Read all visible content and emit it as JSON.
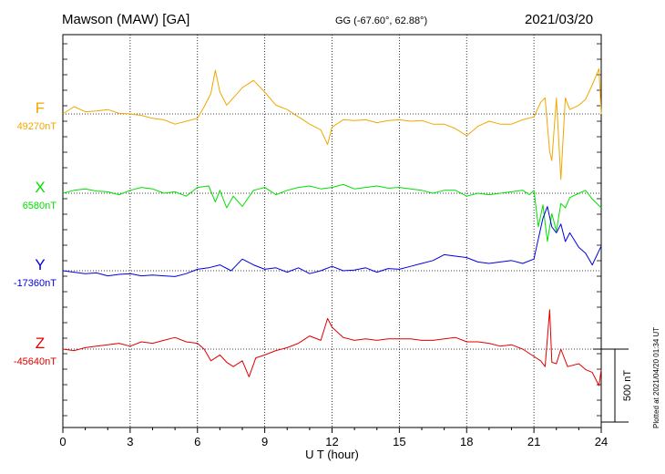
{
  "header": {
    "station": "Mawson (MAW)  [GA]",
    "coordinates": "GG (-67.60°,  62.88°)",
    "date": "2021/03/20"
  },
  "footer": {
    "plotted": "Plotted at 2021/04/20 01:34 UT"
  },
  "chart_data": {
    "type": "line",
    "title": "Mawson (MAW)  [GA]",
    "xlabel": "U T (hour)",
    "xlim": [
      0,
      24
    ],
    "xticks": [
      0,
      3,
      6,
      9,
      12,
      15,
      18,
      21,
      24
    ],
    "scale_bar": {
      "label": "500 nT",
      "value_nT": 500
    },
    "grid": "dotted, every 3 hours and at each baseline",
    "series": [
      {
        "name": "F",
        "color": "#f0a800",
        "baseline_label": "49270nT",
        "baseline_nT": 49270,
        "x": [
          0,
          0.5,
          1,
          1.5,
          2,
          2.5,
          3,
          3.5,
          4,
          4.5,
          5,
          5.5,
          6,
          6.3,
          6.6,
          6.8,
          7,
          7.3,
          7.6,
          8,
          8.5,
          9,
          9.5,
          10,
          10.5,
          11,
          11.5,
          11.8,
          12,
          12.5,
          13,
          13.5,
          14,
          14.5,
          15,
          15.5,
          16,
          16.5,
          17,
          17.5,
          18,
          18.5,
          19,
          19.5,
          20,
          20.5,
          21,
          21.3,
          21.5,
          21.7,
          21.8,
          22,
          22.2,
          22.4,
          22.6,
          23,
          23.3,
          23.6,
          23.9,
          24
        ],
        "y": [
          49270,
          49320,
          49285,
          49290,
          49300,
          49275,
          49270,
          49260,
          49240,
          49230,
          49200,
          49220,
          49240,
          49320,
          49410,
          49570,
          49420,
          49330,
          49380,
          49450,
          49500,
          49420,
          49330,
          49300,
          49250,
          49200,
          49160,
          49060,
          49180,
          49230,
          49225,
          49230,
          49210,
          49225,
          49230,
          49220,
          49225,
          49200,
          49200,
          49170,
          49120,
          49185,
          49220,
          49200,
          49200,
          49230,
          49250,
          49350,
          49380,
          49010,
          48950,
          49380,
          48820,
          49380,
          49300,
          49330,
          49370,
          49470,
          49580,
          49270
        ]
      },
      {
        "name": "X",
        "color": "#00e000",
        "baseline_label": "6580nT",
        "baseline_nT": 6580,
        "x": [
          0,
          0.5,
          1,
          1.5,
          2,
          2.5,
          3,
          3.5,
          4,
          4.5,
          5,
          5.5,
          6,
          6.5,
          6.8,
          7,
          7.3,
          7.6,
          8,
          8.5,
          9,
          9.5,
          10,
          10.5,
          11,
          11.5,
          12,
          12.5,
          13,
          13.5,
          14,
          14.5,
          15,
          15.5,
          16,
          16.5,
          17,
          17.5,
          18,
          18.5,
          19,
          19.5,
          20,
          20.5,
          20.8,
          21,
          21.2,
          21.4,
          21.6,
          21.8,
          22,
          22.2,
          22.4,
          22.6,
          23,
          23.3,
          23.6,
          24
        ],
        "y": [
          6580,
          6600,
          6610,
          6595,
          6590,
          6570,
          6600,
          6620,
          6610,
          6580,
          6590,
          6560,
          6620,
          6630,
          6520,
          6600,
          6480,
          6560,
          6490,
          6600,
          6620,
          6570,
          6600,
          6620,
          6630,
          6610,
          6620,
          6640,
          6610,
          6620,
          6630,
          6615,
          6620,
          6610,
          6600,
          6580,
          6600,
          6600,
          6560,
          6580,
          6570,
          6580,
          6590,
          6600,
          6570,
          6600,
          6350,
          6500,
          6250,
          6440,
          6320,
          6510,
          6480,
          6550,
          6580,
          6600,
          6540,
          6480
        ]
      },
      {
        "name": "Y",
        "color": "#0000e0",
        "baseline_label": "-17360nT",
        "baseline_nT": -17360,
        "x": [
          0,
          0.5,
          1,
          1.5,
          2,
          2.5,
          3,
          3.5,
          4,
          4.5,
          5,
          5.5,
          6,
          6.5,
          7,
          7.5,
          8,
          8.5,
          9,
          9.5,
          10,
          10.5,
          11,
          11.5,
          12,
          12.5,
          13,
          13.5,
          14,
          14.5,
          15,
          15.5,
          16,
          16.5,
          17,
          17.5,
          18,
          18.5,
          19,
          19.5,
          20,
          20.5,
          21,
          21.2,
          21.4,
          21.6,
          21.8,
          22,
          22.2,
          22.4,
          22.6,
          23,
          23.3,
          23.6,
          24
        ],
        "y": [
          -17360,
          -17370,
          -17380,
          -17375,
          -17395,
          -17385,
          -17380,
          -17395,
          -17390,
          -17395,
          -17400,
          -17380,
          -17350,
          -17340,
          -17320,
          -17360,
          -17280,
          -17320,
          -17350,
          -17340,
          -17370,
          -17340,
          -17380,
          -17360,
          -17330,
          -17360,
          -17355,
          -17340,
          -17370,
          -17345,
          -17350,
          -17330,
          -17310,
          -17290,
          -17250,
          -17260,
          -17270,
          -17300,
          -17310,
          -17300,
          -17290,
          -17310,
          -17280,
          -17140,
          -17000,
          -16920,
          -17060,
          -17100,
          -17040,
          -17160,
          -17100,
          -17200,
          -17240,
          -17320,
          -17190
        ]
      },
      {
        "name": "Z",
        "color": "#e00000",
        "baseline_label": "-45640nT",
        "baseline_nT": -45640,
        "x": [
          0,
          0.5,
          1,
          1.5,
          2,
          2.5,
          3,
          3.5,
          4,
          4.5,
          5,
          5.5,
          6,
          6.3,
          6.6,
          7,
          7.3,
          7.6,
          8,
          8.3,
          8.6,
          9,
          9.5,
          10,
          10.5,
          11,
          11.5,
          11.8,
          12,
          12.5,
          13,
          13.5,
          14,
          14.5,
          15,
          15.5,
          16,
          16.5,
          17,
          17.5,
          18,
          18.5,
          19,
          19.5,
          20,
          20.5,
          21,
          21.3,
          21.5,
          21.7,
          21.8,
          22,
          22.2,
          22.5,
          23,
          23.3,
          23.6,
          23.9,
          24
        ],
        "y": [
          -45640,
          -45650,
          -45630,
          -45620,
          -45610,
          -45600,
          -45620,
          -45590,
          -45600,
          -45580,
          -45560,
          -45590,
          -45600,
          -45640,
          -45720,
          -45680,
          -45730,
          -45760,
          -45720,
          -45830,
          -45700,
          -45680,
          -45650,
          -45630,
          -45600,
          -45550,
          -45580,
          -45430,
          -45490,
          -45560,
          -45580,
          -45570,
          -45580,
          -45570,
          -45570,
          -45570,
          -45580,
          -45580,
          -45570,
          -45560,
          -45590,
          -45590,
          -45600,
          -45620,
          -45610,
          -45640,
          -45690,
          -45720,
          -45760,
          -45370,
          -45730,
          -45740,
          -45640,
          -45760,
          -45740,
          -45780,
          -45800,
          -45890,
          -45780
        ]
      }
    ]
  }
}
